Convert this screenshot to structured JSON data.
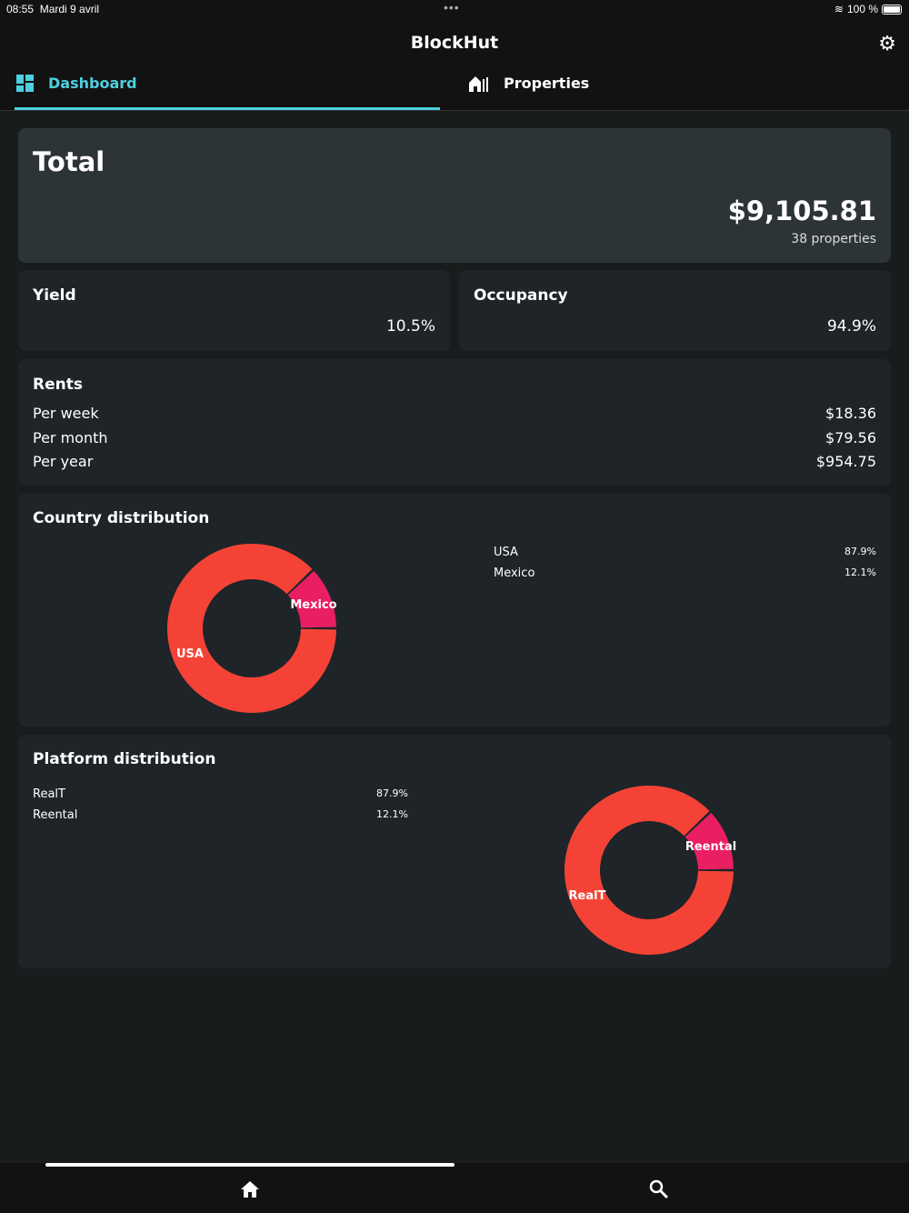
{
  "status": {
    "time": "08:55",
    "date": "Mardi 9 avril",
    "battery": "100 %"
  },
  "header": {
    "title": "BlockHut"
  },
  "tabs": [
    {
      "label": "Dashboard",
      "icon": "dashboard-icon",
      "active": true
    },
    {
      "label": "Properties",
      "icon": "properties-icon"
    }
  ],
  "total": {
    "title": "Total",
    "value": "$9,105.81",
    "sub": "38 properties"
  },
  "yield": {
    "title": "Yield",
    "value": "10.5%"
  },
  "occupancy": {
    "title": "Occupancy",
    "value": "94.9%"
  },
  "rents": {
    "title": "Rents",
    "rows": [
      {
        "label": "Per week",
        "value": "$18.36"
      },
      {
        "label": "Per month",
        "value": "$79.56"
      },
      {
        "label": "Per year",
        "value": "$954.75"
      }
    ]
  },
  "chart_data": [
    {
      "type": "pie",
      "title": "Country distribution",
      "categories": [
        "USA",
        "Mexico"
      ],
      "values": [
        87.9,
        12.1
      ],
      "labels": [
        "87.9%",
        "12.1%"
      ],
      "colors": [
        "#f44336",
        "#e91e63"
      ]
    },
    {
      "type": "pie",
      "title": "Platform distribution",
      "categories": [
        "RealT",
        "Reental"
      ],
      "values": [
        87.9,
        12.1
      ],
      "labels": [
        "87.9%",
        "12.1%"
      ],
      "colors": [
        "#f44336",
        "#e91e63"
      ]
    }
  ],
  "nav": [
    {
      "icon": "home-icon"
    },
    {
      "icon": "search-icon"
    }
  ]
}
